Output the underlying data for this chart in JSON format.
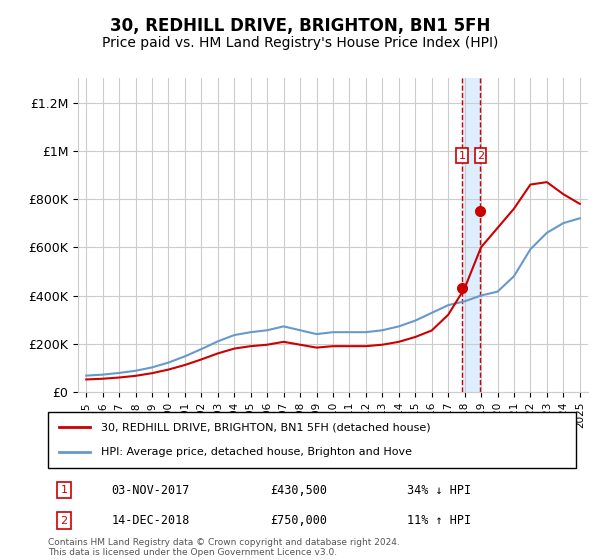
{
  "title": "30, REDHILL DRIVE, BRIGHTON, BN1 5FH",
  "subtitle": "Price paid vs. HM Land Registry's House Price Index (HPI)",
  "title_fontsize": 12,
  "subtitle_fontsize": 10,
  "ylabel_ticks": [
    "£0",
    "£200K",
    "£400K",
    "£600K",
    "£800K",
    "£1M",
    "£1.2M"
  ],
  "ytick_vals": [
    0,
    200000,
    400000,
    600000,
    800000,
    1000000,
    1200000
  ],
  "ylim": [
    0,
    1300000
  ],
  "xlim_start": 1995.0,
  "xlim_end": 2025.5,
  "red_color": "#cc0000",
  "blue_color": "#6699cc",
  "shade_color": "#ddeeff",
  "marker1_x": 2017.84,
  "marker1_y": 430500,
  "marker2_x": 2018.96,
  "marker2_y": 750000,
  "legend_label_red": "30, REDHILL DRIVE, BRIGHTON, BN1 5FH (detached house)",
  "legend_label_blue": "HPI: Average price, detached house, Brighton and Hove",
  "sale1_label": "1",
  "sale2_label": "2",
  "sale1_date": "03-NOV-2017",
  "sale1_price": "£430,500",
  "sale1_hpi": "34% ↓ HPI",
  "sale2_date": "14-DEC-2018",
  "sale2_price": "£750,000",
  "sale2_hpi": "11% ↑ HPI",
  "footer": "Contains HM Land Registry data © Crown copyright and database right 2024.\nThis data is licensed under the Open Government Licence v3.0.",
  "background_color": "#ffffff",
  "grid_color": "#cccccc",
  "hpi_years": [
    1995,
    1996,
    1997,
    1998,
    1999,
    2000,
    2001,
    2002,
    2003,
    2004,
    2005,
    2006,
    2007,
    2008,
    2009,
    2010,
    2011,
    2012,
    2013,
    2014,
    2015,
    2016,
    2017,
    2018,
    2019,
    2020,
    2021,
    2022,
    2023,
    2024,
    2025
  ],
  "hpi_values": [
    68000,
    72000,
    79000,
    88000,
    102000,
    122000,
    148000,
    178000,
    210000,
    236000,
    248000,
    256000,
    272000,
    256000,
    240000,
    248000,
    248000,
    248000,
    256000,
    272000,
    296000,
    328000,
    360000,
    376000,
    400000,
    416000,
    480000,
    592000,
    660000,
    700000,
    720000
  ],
  "red_years": [
    1995,
    1996,
    1997,
    1998,
    1999,
    2000,
    2001,
    2002,
    2003,
    2004,
    2005,
    2006,
    2007,
    2008,
    2009,
    2010,
    2011,
    2012,
    2013,
    2014,
    2015,
    2016,
    2017,
    2018,
    2019,
    2020,
    2021,
    2022,
    2023,
    2024,
    2025
  ],
  "red_values": [
    52000,
    55000,
    60000,
    67000,
    78000,
    93000,
    112000,
    135000,
    160000,
    180000,
    190000,
    196000,
    208000,
    196000,
    184000,
    190000,
    190000,
    190000,
    196000,
    208000,
    228000,
    255000,
    320000,
    430000,
    600000,
    680000,
    760000,
    860000,
    870000,
    820000,
    780000
  ]
}
